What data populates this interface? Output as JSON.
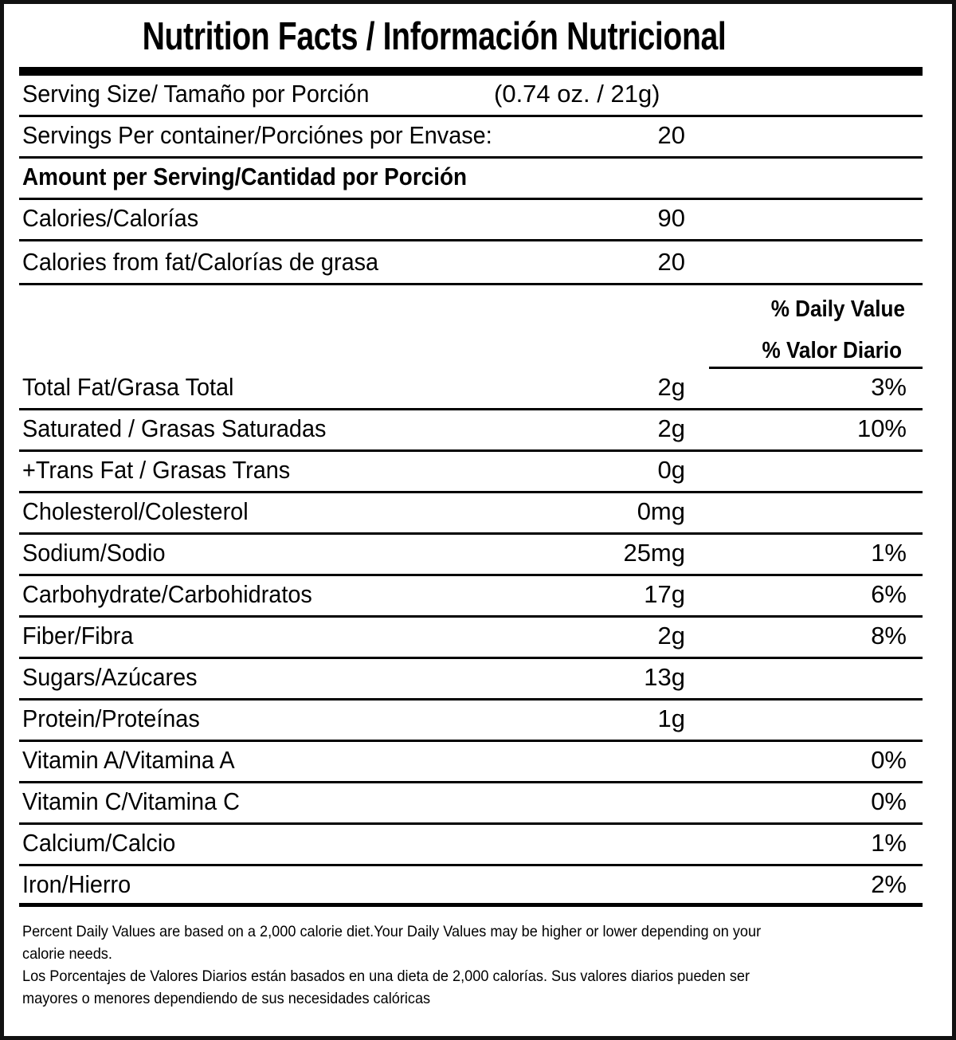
{
  "title": "Nutrition Facts / Información Nutricional",
  "serving_size": {
    "label": "Serving Size/ Tamaño por Porción",
    "value": "(0.74 oz. / 21g)"
  },
  "servings_per_container": {
    "label": "Servings Per container/Porciónes por Envase:",
    "value": "20"
  },
  "amount_header": "Amount per Serving/Cantidad por Porción",
  "calories": {
    "label": "Calories/Calorías",
    "value": "90"
  },
  "calories_from_fat": {
    "label": "Calories from fat/Calorías de grasa",
    "value": "20"
  },
  "dv_header": {
    "en": "% Daily Value",
    "es": "% Valor Diario"
  },
  "nutrients": [
    {
      "label": "Total Fat/Grasa Total",
      "amount": "2g",
      "dv": "3%"
    },
    {
      "label": "Saturated / Grasas Saturadas",
      "amount": "2g",
      "dv": "10%"
    },
    {
      "label": "+Trans Fat / Grasas Trans",
      "amount": "0g",
      "dv": ""
    },
    {
      "label": "Cholesterol/Colesterol",
      "amount": "0mg",
      "dv": ""
    },
    {
      "label": "Sodium/Sodio",
      "amount": "25mg",
      "dv": "1%"
    },
    {
      "label": "Carbohydrate/Carbohidratos",
      "amount": "17g",
      "dv": "6%"
    },
    {
      "label": "Fiber/Fibra",
      "amount": "2g",
      "dv": "8%"
    },
    {
      "label": "Sugars/Azúcares",
      "amount": "13g",
      "dv": ""
    },
    {
      "label": "Protein/Proteínas",
      "amount": "1g",
      "dv": ""
    },
    {
      "label": "Vitamin A/Vitamina A",
      "amount": "",
      "dv": "0%"
    },
    {
      "label": "Vitamin C/Vitamina C",
      "amount": "",
      "dv": "0%"
    },
    {
      "label": "Calcium/Calcio",
      "amount": "",
      "dv": "1%"
    },
    {
      "label": "Iron/Hierro",
      "amount": "",
      "dv": "2%"
    }
  ],
  "footnote": {
    "en": "Percent Daily Values are based on a 2,000 calorie diet.Your Daily Values may be higher or lower depending on your\ncalorie needs.",
    "es": "Los Porcentajes de Valores Diarios están basados en una dieta de 2,000 calorías. Sus valores diarios pueden ser\nmayores o menores dependiendo de sus necesidades calóricas"
  }
}
